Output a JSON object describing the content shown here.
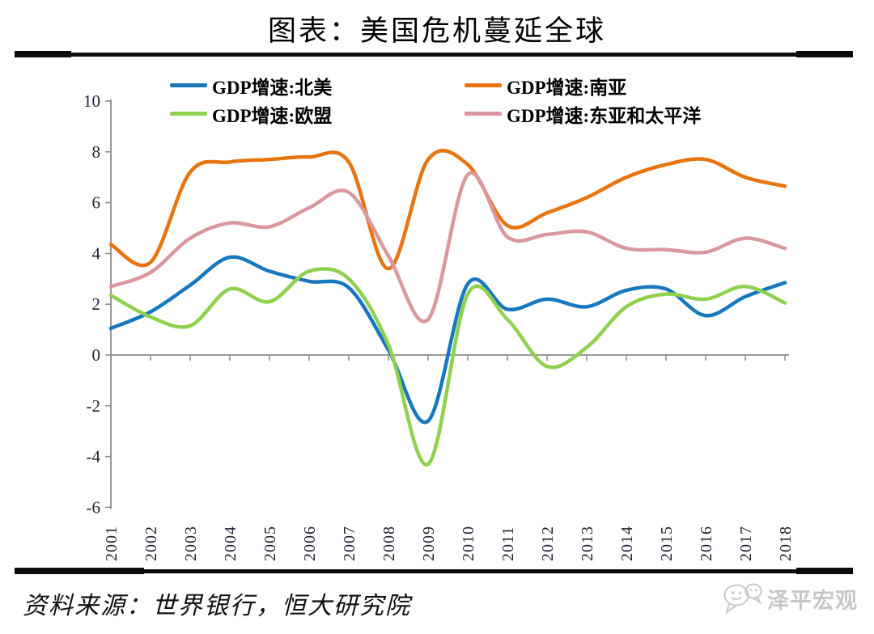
{
  "title": "图表：美国危机蔓延全球",
  "footer": {
    "source_text": "资料来源：世界银行，恒大研究院"
  },
  "watermark": {
    "brand": "泽平宏观"
  },
  "axis_colors": {
    "tick_label": "#1c2233",
    "axis_line": "#8a8a8a"
  },
  "chart_data": {
    "type": "line",
    "title": "图表：美国危机蔓延全球",
    "xlabel": "",
    "ylabel": "",
    "x": [
      2001,
      2002,
      2003,
      2004,
      2005,
      2006,
      2007,
      2008,
      2009,
      2010,
      2011,
      2012,
      2013,
      2014,
      2015,
      2016,
      2017,
      2018
    ],
    "ylim": [
      -6,
      10
    ],
    "ytick_step": 2,
    "grid": false,
    "legend_position": "top",
    "series": [
      {
        "name": "GDP增速:北美",
        "color": "#1878BD",
        "values": [
          1.05,
          1.7,
          2.75,
          3.85,
          3.3,
          2.9,
          2.65,
          0.2,
          -2.6,
          2.8,
          1.8,
          2.2,
          1.9,
          2.55,
          2.6,
          1.55,
          2.3,
          2.85
        ]
      },
      {
        "name": "GDP增速:南亚",
        "color": "#E8740E",
        "values": [
          4.35,
          3.65,
          7.2,
          7.6,
          7.7,
          7.8,
          7.6,
          3.4,
          7.7,
          7.5,
          5.1,
          5.6,
          6.2,
          7.0,
          7.5,
          7.7,
          7.0,
          6.65
        ]
      },
      {
        "name": "GDP增速:欧盟",
        "color": "#8FD14F",
        "values": [
          2.35,
          1.5,
          1.15,
          2.6,
          2.1,
          3.3,
          3.0,
          0.4,
          -4.3,
          2.4,
          1.4,
          -0.45,
          0.3,
          1.9,
          2.4,
          2.2,
          2.7,
          2.05
        ]
      },
      {
        "name": "GDP增速:东亚和太平洋",
        "color": "#D9989E",
        "values": [
          2.7,
          3.25,
          4.6,
          5.2,
          5.05,
          5.8,
          6.4,
          3.9,
          1.4,
          7.1,
          4.65,
          4.75,
          4.85,
          4.2,
          4.15,
          4.05,
          4.6,
          4.2
        ]
      }
    ]
  }
}
